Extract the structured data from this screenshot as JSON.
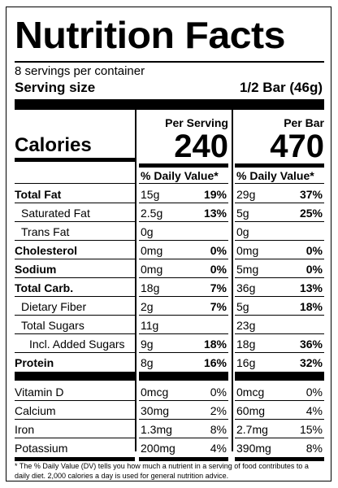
{
  "title": "Nutrition Facts",
  "servings_per_container": "8 servings per container",
  "serving_size_label": "Serving size",
  "serving_size_value": "1/2 Bar (46g)",
  "calories_label": "Calories",
  "columns": [
    {
      "header": "Per Serving",
      "calories": "240",
      "dv_header": "% Daily Value*"
    },
    {
      "header": "Per Bar",
      "calories": "470",
      "dv_header": "% Daily Value*"
    }
  ],
  "nutrients": [
    {
      "name": "Total Fat",
      "bold": true,
      "indent": 0,
      "serving_amt": "15g",
      "serving_dv": "19%",
      "bar_amt": "29g",
      "bar_dv": "37%"
    },
    {
      "name": "Saturated Fat",
      "bold": false,
      "indent": 1,
      "serving_amt": "2.5g",
      "serving_dv": "13%",
      "bar_amt": "5g",
      "bar_dv": "25%"
    },
    {
      "name": "Trans Fat",
      "bold": false,
      "indent": 1,
      "serving_amt": "0g",
      "serving_dv": "",
      "bar_amt": "0g",
      "bar_dv": ""
    },
    {
      "name": "Cholesterol",
      "bold": true,
      "indent": 0,
      "serving_amt": "0mg",
      "serving_dv": "0%",
      "bar_amt": "0mg",
      "bar_dv": "0%"
    },
    {
      "name": "Sodium",
      "bold": true,
      "indent": 0,
      "serving_amt": "0mg",
      "serving_dv": "0%",
      "bar_amt": "5mg",
      "bar_dv": "0%"
    },
    {
      "name": "Total Carb.",
      "bold": true,
      "indent": 0,
      "serving_amt": "18g",
      "serving_dv": "7%",
      "bar_amt": "36g",
      "bar_dv": "13%"
    },
    {
      "name": "Dietary Fiber",
      "bold": false,
      "indent": 1,
      "serving_amt": "2g",
      "serving_dv": "7%",
      "bar_amt": "5g",
      "bar_dv": "18%"
    },
    {
      "name": "Total Sugars",
      "bold": false,
      "indent": 1,
      "serving_amt": "11g",
      "serving_dv": "",
      "bar_amt": "23g",
      "bar_dv": ""
    },
    {
      "name": "Incl. Added Sugars",
      "bold": false,
      "indent": 2,
      "serving_amt": "9g",
      "serving_dv": "18%",
      "bar_amt": "18g",
      "bar_dv": "36%"
    },
    {
      "name": "Protein",
      "bold": true,
      "indent": 0,
      "serving_amt": "8g",
      "serving_dv": "16%",
      "bar_amt": "16g",
      "bar_dv": "32%"
    }
  ],
  "vitamins": [
    {
      "name": "Vitamin D",
      "serving_amt": "0mcg",
      "serving_dv": "0%",
      "bar_amt": "0mcg",
      "bar_dv": "0%"
    },
    {
      "name": "Calcium",
      "serving_amt": "30mg",
      "serving_dv": "2%",
      "bar_amt": "60mg",
      "bar_dv": "4%"
    },
    {
      "name": "Iron",
      "serving_amt": "1.3mg",
      "serving_dv": "8%",
      "bar_amt": "2.7mg",
      "bar_dv": "15%"
    },
    {
      "name": "Potassium",
      "serving_amt": "200mg",
      "serving_dv": "4%",
      "bar_amt": "390mg",
      "bar_dv": "8%"
    }
  ],
  "footnote": "* The % Daily Value (DV) tells you how much a nutrient in a serving of food contributes to a daily diet. 2,000 calories a day is used for general nutrition advice."
}
